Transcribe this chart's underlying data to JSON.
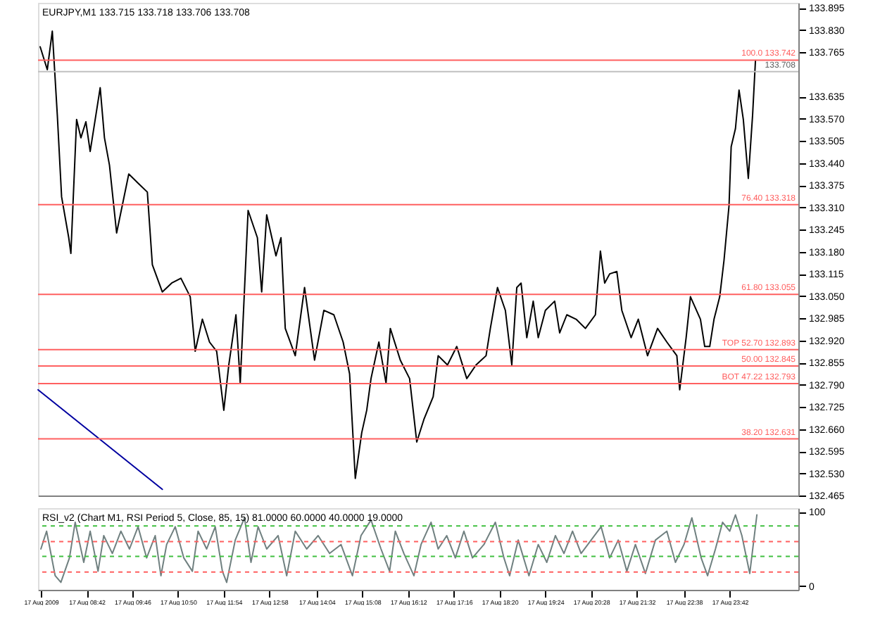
{
  "chart_data": [
    {
      "type": "line",
      "title": "EURJPY,M1  133.715 133.718 133.706 133.708",
      "series": [
        {
          "color": "#000000",
          "x": [
            "2009-08-17T07:37",
            "2009-08-17T07:47",
            "2009-08-17T07:54",
            "2009-08-17T08:01",
            "2009-08-17T08:07",
            "2009-08-17T08:17",
            "2009-08-17T08:20",
            "2009-08-17T08:28",
            "2009-08-17T08:34",
            "2009-08-17T08:41",
            "2009-08-17T08:47",
            "2009-08-17T09:01",
            "2009-08-17T09:07",
            "2009-08-17T09:14",
            "2009-08-17T09:24",
            "2009-08-17T09:41",
            "2009-08-17T09:54",
            "2009-08-17T10:07",
            "2009-08-17T10:14",
            "2009-08-17T10:28",
            "2009-08-17T10:41",
            "2009-08-17T10:54",
            "2009-08-17T11:07",
            "2009-08-17T11:14",
            "2009-08-17T11:24",
            "2009-08-17T11:34",
            "2009-08-17T11:44",
            "2009-08-17T11:54",
            "2009-08-17T12:01",
            "2009-08-17T12:11",
            "2009-08-17T12:17",
            "2009-08-17T12:28",
            "2009-08-17T12:41",
            "2009-08-17T12:47",
            "2009-08-17T12:54",
            "2009-08-17T13:07",
            "2009-08-17T13:14",
            "2009-08-17T13:20",
            "2009-08-17T13:34",
            "2009-08-17T13:47",
            "2009-08-17T14:01",
            "2009-08-17T14:14",
            "2009-08-17T14:28",
            "2009-08-17T14:41",
            "2009-08-17T14:50",
            "2009-08-17T14:58",
            "2009-08-17T15:07",
            "2009-08-17T15:14",
            "2009-08-17T15:20",
            "2009-08-17T15:31",
            "2009-08-17T15:41",
            "2009-08-17T15:47",
            "2009-08-17T16:01",
            "2009-08-17T16:14",
            "2009-08-17T16:24",
            "2009-08-17T16:34",
            "2009-08-17T16:47",
            "2009-08-17T16:54",
            "2009-08-17T17:07",
            "2009-08-17T17:20",
            "2009-08-17T17:34",
            "2009-08-17T17:47",
            "2009-08-17T18:01",
            "2009-08-17T18:07",
            "2009-08-17T18:17",
            "2009-08-17T18:28",
            "2009-08-17T18:37",
            "2009-08-17T18:44",
            "2009-08-17T18:50",
            "2009-08-17T18:58",
            "2009-08-17T19:07",
            "2009-08-17T19:14",
            "2009-08-17T19:24",
            "2009-08-17T19:37",
            "2009-08-17T19:44",
            "2009-08-17T19:54",
            "2009-08-17T20:07",
            "2009-08-17T20:20",
            "2009-08-17T20:34",
            "2009-08-17T20:41",
            "2009-08-17T20:47",
            "2009-08-17T20:54",
            "2009-08-17T21:04",
            "2009-08-17T21:11",
            "2009-08-17T21:24",
            "2009-08-17T21:34",
            "2009-08-17T21:47",
            "2009-08-17T22:01",
            "2009-08-17T22:14",
            "2009-08-17T22:28",
            "2009-08-17T22:32",
            "2009-08-17T22:41",
            "2009-08-17T22:47",
            "2009-08-17T23:01",
            "2009-08-17T23:07",
            "2009-08-17T23:14",
            "2009-08-17T23:20",
            "2009-08-17T23:28",
            "2009-08-17T23:34",
            "2009-08-17T23:41",
            "2009-08-17T23:44",
            "2009-08-17T23:50",
            "2009-08-17T23:55",
            "2009-08-18T00:01",
            "2009-08-18T00:08",
            "2009-08-18T00:14",
            "2009-08-18T00:18"
          ],
          "values": [
            133.781,
            133.714,
            133.827,
            133.581,
            133.341,
            133.221,
            133.175,
            133.568,
            133.514,
            133.561,
            133.474,
            133.661,
            133.514,
            133.434,
            133.235,
            133.408,
            133.381,
            133.355,
            133.142,
            133.062,
            133.088,
            133.102,
            133.048,
            132.888,
            132.982,
            132.915,
            132.888,
            132.715,
            132.848,
            132.995,
            132.795,
            133.301,
            133.221,
            133.062,
            133.288,
            133.168,
            133.221,
            132.955,
            132.875,
            133.075,
            132.862,
            133.008,
            132.995,
            132.915,
            132.822,
            132.515,
            132.649,
            132.715,
            132.808,
            132.915,
            132.795,
            132.955,
            132.862,
            132.808,
            132.622,
            132.688,
            132.755,
            132.875,
            132.848,
            132.902,
            132.808,
            132.848,
            132.875,
            132.955,
            133.075,
            133.008,
            132.848,
            133.075,
            133.088,
            132.928,
            133.035,
            132.928,
            133.008,
            133.035,
            132.942,
            132.995,
            132.982,
            132.955,
            132.995,
            133.182,
            133.088,
            133.115,
            133.122,
            133.008,
            132.928,
            132.982,
            132.875,
            132.955,
            132.915,
            132.875,
            132.775,
            132.928,
            133.048,
            132.982,
            132.902,
            132.902,
            132.982,
            133.048,
            133.155,
            133.315,
            133.488,
            133.541,
            133.654,
            133.568,
            133.395,
            133.581,
            133.741
          ]
        },
        {
          "color": "#0000a0",
          "x": [
            "2009-08-17T07:34",
            "2009-08-17T10:28"
          ],
          "values": [
            132.775,
            132.483
          ]
        }
      ],
      "xlim": [
        "2009-08-17T07:34",
        "2009-08-18T01:18"
      ],
      "ylim": [
        132.465,
        133.91
      ],
      "yticks": [
        133.895,
        {
          "value": 133.83,
          "label": "133.830"
        },
        133.765,
        133.635,
        {
          "value": 133.57,
          "label": "133.570"
        },
        133.505,
        {
          "value": 133.44,
          "label": "133.440"
        },
        133.375,
        {
          "value": 133.31,
          "label": "133.310"
        },
        133.245,
        {
          "value": 133.18,
          "label": "133.180"
        },
        133.115,
        {
          "value": 133.05,
          "label": "133.050"
        },
        132.985,
        {
          "value": 132.92,
          "label": "132.920"
        },
        132.855,
        {
          "value": 132.79,
          "label": "132.790"
        },
        132.725,
        {
          "value": 132.66,
          "label": "132.660"
        },
        132.595,
        {
          "value": 132.53,
          "label": "132.530"
        },
        132.465
      ],
      "ref_lines": [
        {
          "axis": "y",
          "value": 133.708,
          "label": "133.708",
          "color": "#c0c0c0"
        },
        {
          "axis": "y",
          "value": 133.742,
          "label": "100.0   133.742",
          "color": "#ff6060"
        },
        {
          "axis": "y",
          "value": 133.318,
          "label": "76.40   133.318",
          "color": "#ff6060"
        },
        {
          "axis": "y",
          "value": 133.055,
          "label": "61.80   133.055",
          "color": "#ff6060"
        },
        {
          "axis": "y",
          "value": 132.893,
          "label": "TOP   52.70   132.893",
          "color": "#ff6060"
        },
        {
          "axis": "y",
          "value": 132.845,
          "label": "50.00   132.845",
          "color": "#ff6060"
        },
        {
          "axis": "y",
          "value": 132.793,
          "label": "BOT   47.22   132.793",
          "color": "#ff6060"
        },
        {
          "axis": "y",
          "value": 132.631,
          "label": "38.20   132.631",
          "color": "#ff6060"
        }
      ],
      "tick_labels": "y",
      "grid": false,
      "legend": false
    },
    {
      "type": "line",
      "title": "RSI_v2  (Chart M1, RSI Period 5, Close, 85, 15)  81.0000 60.0000 40.0000 19.0000",
      "series": [
        {
          "color": "#708080",
          "x": [
            "2009-08-17T07:38",
            "2009-08-17T07:46",
            "2009-08-17T07:58",
            "2009-08-17T08:06",
            "2009-08-17T08:18",
            "2009-08-17T08:26",
            "2009-08-17T08:38",
            "2009-08-17T08:47",
            "2009-08-17T08:58",
            "2009-08-17T09:06",
            "2009-08-17T09:18",
            "2009-08-17T09:30",
            "2009-08-17T09:42",
            "2009-08-17T09:54",
            "2009-08-17T10:06",
            "2009-08-17T10:18",
            "2009-08-17T10:26",
            "2009-08-17T10:34",
            "2009-08-17T10:46",
            "2009-08-17T10:58",
            "2009-08-17T11:10",
            "2009-08-17T11:18",
            "2009-08-17T11:30",
            "2009-08-17T11:42",
            "2009-08-17T11:52",
            "2009-08-17T11:58",
            "2009-08-17T12:10",
            "2009-08-17T12:23",
            "2009-08-17T12:32",
            "2009-08-17T12:42",
            "2009-08-17T12:54",
            "2009-08-17T13:10",
            "2009-08-17T13:22",
            "2009-08-17T13:34",
            "2009-08-17T13:50",
            "2009-08-17T14:06",
            "2009-08-17T14:22",
            "2009-08-17T14:38",
            "2009-08-17T14:54",
            "2009-08-17T15:06",
            "2009-08-17T15:20",
            "2009-08-17T15:34",
            "2009-08-17T15:46",
            "2009-08-17T15:54",
            "2009-08-17T16:06",
            "2009-08-17T16:20",
            "2009-08-17T16:30",
            "2009-08-17T16:44",
            "2009-08-17T16:54",
            "2009-08-17T17:06",
            "2009-08-17T17:18",
            "2009-08-17T17:30",
            "2009-08-17T17:42",
            "2009-08-17T17:58",
            "2009-08-17T18:14",
            "2009-08-17T18:26",
            "2009-08-17T18:34",
            "2009-08-17T18:46",
            "2009-08-17T19:01",
            "2009-08-17T19:14",
            "2009-08-17T19:26",
            "2009-08-17T19:38",
            "2009-08-17T19:50",
            "2009-08-17T20:02",
            "2009-08-17T20:14",
            "2009-08-17T20:28",
            "2009-08-17T20:42",
            "2009-08-17T20:54",
            "2009-08-17T21:06",
            "2009-08-17T21:18",
            "2009-08-17T21:30",
            "2009-08-17T21:44",
            "2009-08-17T21:58",
            "2009-08-17T22:14",
            "2009-08-17T22:26",
            "2009-08-17T22:38",
            "2009-08-17T22:49",
            "2009-08-17T23:02",
            "2009-08-17T23:11",
            "2009-08-17T23:22",
            "2009-08-17T23:32",
            "2009-08-17T23:42",
            "2009-08-17T23:50",
            "2009-08-17T23:59",
            "2009-08-18T00:10",
            "2009-08-18T00:20"
          ],
          "values": [
            50,
            74,
            14,
            5,
            38,
            86,
            32,
            74,
            20,
            68,
            44,
            74,
            50,
            80,
            38,
            68,
            14,
            56,
            80,
            38,
            20,
            74,
            50,
            80,
            20,
            5,
            62,
            92,
            32,
            80,
            50,
            68,
            14,
            74,
            50,
            68,
            44,
            56,
            14,
            68,
            89,
            50,
            20,
            74,
            44,
            14,
            56,
            86,
            50,
            68,
            38,
            74,
            38,
            56,
            86,
            38,
            14,
            62,
            14,
            56,
            32,
            68,
            44,
            74,
            44,
            62,
            80,
            38,
            62,
            20,
            56,
            17,
            62,
            74,
            32,
            56,
            92,
            38,
            14,
            50,
            86,
            74,
            96,
            68,
            17,
            96
          ]
        }
      ],
      "xlim": [
        "2009-08-17T07:34",
        "2009-08-18T01:18"
      ],
      "ylim": [
        -5,
        105
      ],
      "yticks": [
        0,
        100
      ],
      "xticks": [
        {
          "value": "2009-08-17T07:38",
          "label": "17 Aug 2009"
        },
        {
          "value": "2009-08-17T08:42",
          "label": "17 Aug 08:42"
        },
        {
          "value": "2009-08-17T09:46",
          "label": "17 Aug 09:46"
        },
        {
          "value": "2009-08-17T10:50",
          "label": "17 Aug 10:50"
        },
        {
          "value": "2009-08-17T11:54",
          "label": "17 Aug 11:54"
        },
        {
          "value": "2009-08-17T12:58",
          "label": "17 Aug 12:58"
        },
        {
          "value": "2009-08-17T14:04",
          "label": "17 Aug 14:04"
        },
        {
          "value": "2009-08-17T15:08",
          "label": "17 Aug 15:08"
        },
        {
          "value": "2009-08-17T16:12",
          "label": "17 Aug 16:12"
        },
        {
          "value": "2009-08-17T17:16",
          "label": "17 Aug 17:16"
        },
        {
          "value": "2009-08-17T18:20",
          "label": "17 Aug 18:20"
        },
        {
          "value": "2009-08-17T19:24",
          "label": "17 Aug 19:24"
        },
        {
          "value": "2009-08-17T20:28",
          "label": "17 Aug 20:28"
        },
        {
          "value": "2009-08-17T21:32",
          "label": "17 Aug 21:32"
        },
        {
          "value": "2009-08-17T22:38",
          "label": "17 Aug 22:38"
        },
        {
          "value": "2009-08-17T23:42",
          "label": "17 Aug 23:42"
        }
      ],
      "ref_lines": [
        {
          "axis": "y",
          "value": 81,
          "color": "#40c040",
          "line_style": "dashed"
        },
        {
          "axis": "y",
          "value": 60,
          "color": "#ff6060",
          "line_style": "dashed"
        },
        {
          "axis": "y",
          "value": 40,
          "color": "#40c040",
          "line_style": "dashed"
        },
        {
          "axis": "y",
          "value": 19,
          "color": "#ff6060",
          "line_style": "dashed"
        }
      ],
      "grid": false,
      "legend": false
    }
  ]
}
